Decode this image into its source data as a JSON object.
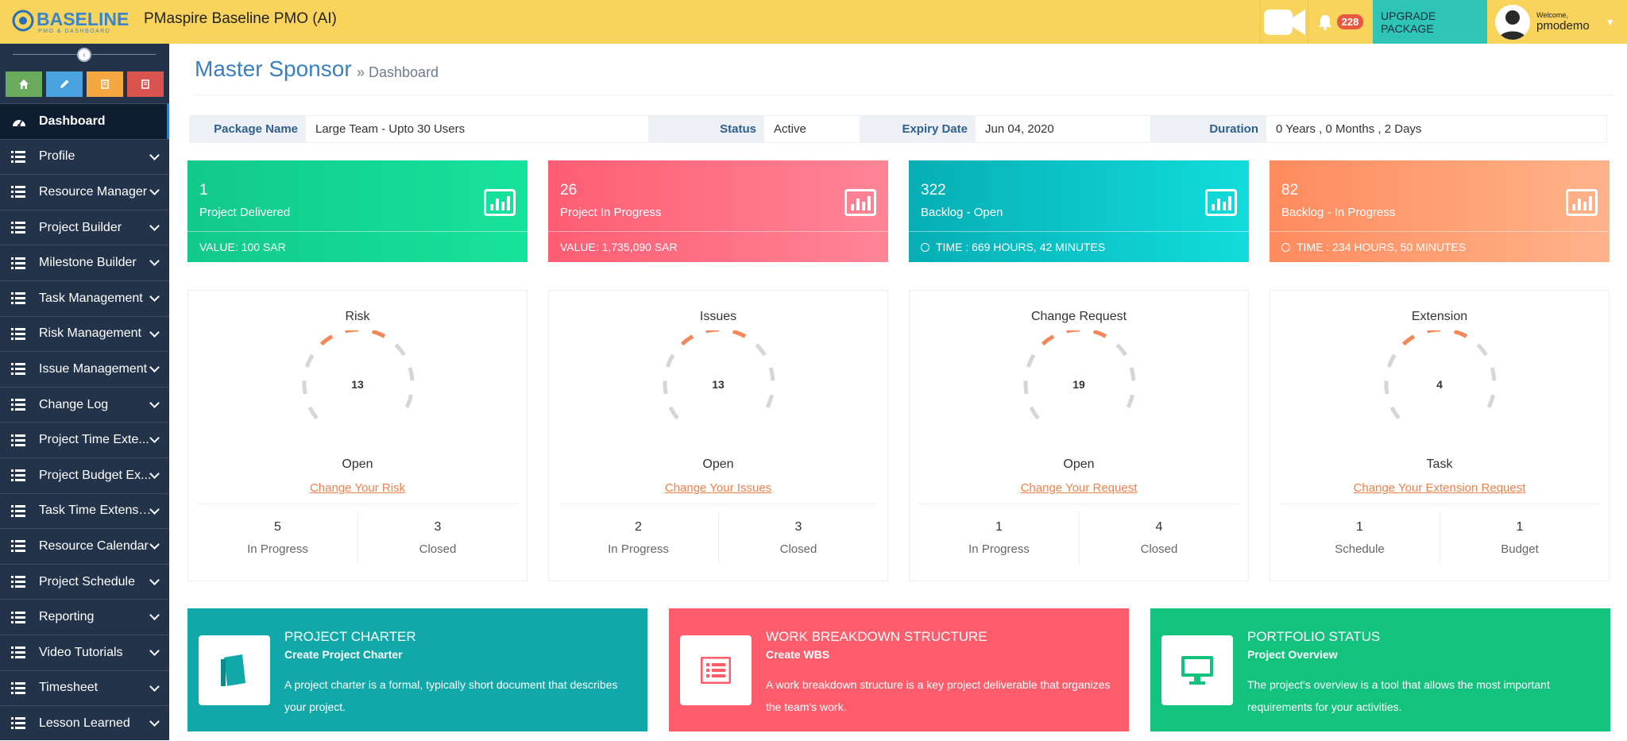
{
  "app": {
    "logo_text": "BASELINE",
    "logo_sub": "PMO & DASHBOARD",
    "title": "PMaspire Baseline PMO (AI)"
  },
  "topbar": {
    "notification_count": "228",
    "upgrade_label": "UPGRADE PACKAGE",
    "welcome": "Welcome,",
    "username": "pmodemo"
  },
  "sidebar": {
    "quick_buttons": [
      "home-icon",
      "pencil-icon",
      "book-icon",
      "book-icon"
    ],
    "items": [
      {
        "label": "Dashboard",
        "icon": "dashboard-icon"
      },
      {
        "label": "Profile",
        "icon": "list-icon"
      },
      {
        "label": "Resource Manager",
        "icon": "list-icon"
      },
      {
        "label": "Project Builder",
        "icon": "list-icon"
      },
      {
        "label": "Milestone Builder",
        "icon": "list-icon"
      },
      {
        "label": "Task Management",
        "icon": "list-icon"
      },
      {
        "label": "Risk Management",
        "icon": "list-icon"
      },
      {
        "label": "Issue Management",
        "icon": "list-icon"
      },
      {
        "label": "Change Log",
        "icon": "list-icon"
      },
      {
        "label": "Project Time Exte...",
        "icon": "list-icon"
      },
      {
        "label": "Project Budget Ex...",
        "icon": "list-icon"
      },
      {
        "label": "Task Time Extensi...",
        "icon": "list-icon"
      },
      {
        "label": "Resource Calendar",
        "icon": "list-icon"
      },
      {
        "label": "Project Schedule",
        "icon": "list-icon"
      },
      {
        "label": "Reporting",
        "icon": "list-icon"
      },
      {
        "label": "Video Tutorials",
        "icon": "list-icon"
      },
      {
        "label": "Timesheet",
        "icon": "list-icon"
      },
      {
        "label": "Lesson Learned",
        "icon": "list-icon"
      }
    ]
  },
  "page": {
    "title": "Master Sponsor",
    "breadcrumb": "» Dashboard"
  },
  "package": {
    "name_label": "Package Name",
    "name_value": "Large Team - Upto 30 Users",
    "status_label": "Status",
    "status_value": "Active",
    "expiry_label": "Expiry Date",
    "expiry_value": "Jun 04, 2020",
    "duration_label": "Duration",
    "duration_value": "0 Years , 0 Months , 2 Days"
  },
  "stat_cards": [
    {
      "number": "1",
      "label": "Project Delivered",
      "footer": "VALUE: 100 SAR",
      "footer_icon": ""
    },
    {
      "number": "26",
      "label": "Project In Progress",
      "footer": "VALUE: 1,735,090 SAR",
      "footer_icon": ""
    },
    {
      "number": "322",
      "label": "Backlog - Open",
      "footer": "TIME : 669 HOURS, 42 MINUTES",
      "footer_icon": "clock-icon"
    },
    {
      "number": "82",
      "label": "Backlog - In Progress",
      "footer": "TIME : 234 HOURS, 50 MINUTES",
      "footer_icon": "clock-icon"
    }
  ],
  "gauge_cards": [
    {
      "title": "Risk",
      "value": "13",
      "status": "Open",
      "link": "Change Your Risk",
      "left_num": "5",
      "left_label": "In Progress",
      "right_num": "3",
      "right_label": "Closed"
    },
    {
      "title": "Issues",
      "value": "13",
      "status": "Open",
      "link": "Change Your Issues",
      "left_num": "2",
      "left_label": "In Progress",
      "right_num": "3",
      "right_label": "Closed"
    },
    {
      "title": "Change Request",
      "value": "19",
      "status": "Open",
      "link": "Change Your Request",
      "left_num": "1",
      "left_label": "In Progress",
      "right_num": "4",
      "right_label": "Closed"
    },
    {
      "title": "Extension",
      "value": "4",
      "status": "Task",
      "link": "Change Your Extension Request",
      "left_num": "1",
      "left_label": "Schedule",
      "right_num": "1",
      "right_label": "Budget"
    }
  ],
  "bottom_cards": [
    {
      "heading": "PROJECT CHARTER",
      "sub": "Create Project Charter",
      "desc": "A project charter is a formal, typically short document that describes your project.",
      "icon": "book-icon"
    },
    {
      "heading": "WORK BREAKDOWN STRUCTURE",
      "sub": "Create WBS",
      "desc": "A work breakdown structure is a key project deliverable that organizes the team's work.",
      "icon": "list-alt-icon"
    },
    {
      "heading": "PORTFOLIO STATUS",
      "sub": "Project Overview",
      "desc": "The project's overview is a tool that allows the most important requirements for your activities.",
      "icon": "monitor-icon"
    }
  ],
  "colors": {
    "topbar": "#f8d45c",
    "sidebar": "#23334a",
    "accent_orange": "#f0814c",
    "teal": "#10a8a8",
    "pink": "#ff5d6c",
    "green": "#13c27c"
  }
}
